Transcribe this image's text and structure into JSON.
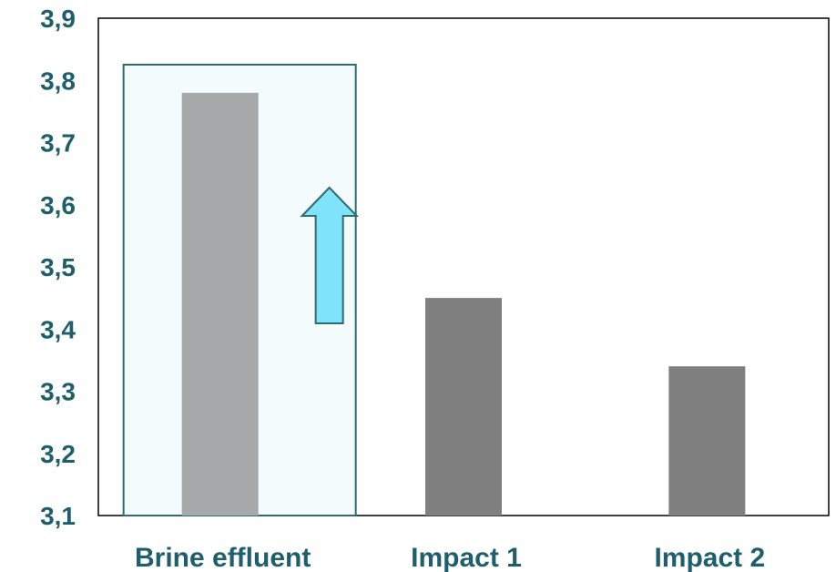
{
  "chart_data": {
    "type": "bar",
    "categories": [
      "Brine effluent",
      "Impact 1",
      "Impact 2"
    ],
    "values": [
      3.78,
      3.45,
      3.34
    ],
    "ylim": [
      3.1,
      3.9
    ],
    "yticks": [
      "3,1",
      "3,2",
      "3,3",
      "3,4",
      "3,5",
      "3,6",
      "3,7",
      "3,8",
      "3,9"
    ],
    "grid": false,
    "legend": "none",
    "colors": {
      "highlighted_bar": "#a5a9aa",
      "bar": "#7f7f7f",
      "highlight_box_fill": "#f3fbfd",
      "highlight_box_stroke": "#2f6a72",
      "arrow_fill": "#7fe3f9",
      "arrow_stroke": "#2f6a72",
      "text": "#1f5f6b",
      "axis": "#000000"
    },
    "annotations": {
      "highlight_category": "Brine effluent",
      "arrow_icon": "up-arrow-icon"
    }
  }
}
